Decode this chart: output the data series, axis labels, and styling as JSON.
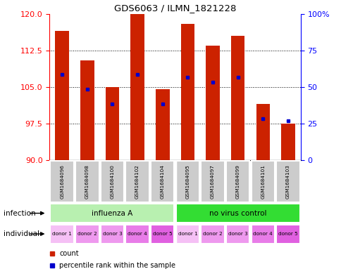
{
  "title": "GDS6063 / ILMN_1821228",
  "samples": [
    "GSM1684096",
    "GSM1684098",
    "GSM1684100",
    "GSM1684102",
    "GSM1684104",
    "GSM1684095",
    "GSM1684097",
    "GSM1684099",
    "GSM1684101",
    "GSM1684103"
  ],
  "count_values": [
    116.5,
    110.5,
    105.0,
    120.0,
    104.5,
    118.0,
    113.5,
    115.5,
    101.5,
    97.5
  ],
  "percentile_values": [
    107.5,
    104.5,
    101.5,
    107.5,
    101.5,
    107.0,
    106.0,
    107.0,
    98.5,
    98.0
  ],
  "ylim_left": [
    90,
    120
  ],
  "ylim_right": [
    0,
    100
  ],
  "yticks_left": [
    90,
    97.5,
    105,
    112.5,
    120
  ],
  "yticks_right": [
    0,
    25,
    50,
    75,
    100
  ],
  "infection_groups": [
    {
      "label": "influenza A",
      "start": 0,
      "end": 5,
      "color": "#b8f0b0"
    },
    {
      "label": "no virus control",
      "start": 5,
      "end": 10,
      "color": "#33dd33"
    }
  ],
  "individual_labels": [
    "donor 1",
    "donor 2",
    "donor 3",
    "donor 4",
    "donor 5",
    "donor 1",
    "donor 2",
    "donor 3",
    "donor 4",
    "donor 5"
  ],
  "individual_colors": [
    "#f0a0f0",
    "#e890e8",
    "#e890e8",
    "#e090e0",
    "#da80da",
    "#f0a0f0",
    "#e890e8",
    "#e890e8",
    "#e090e0",
    "#da80da"
  ],
  "bar_color": "#cc2200",
  "percentile_color": "#0000cc",
  "sample_bg_color": "#cccccc",
  "bar_width": 0.55,
  "base_value": 90,
  "annotation_infection": "infection",
  "annotation_individual": "individual",
  "legend_count": "count",
  "legend_percentile": "percentile rank within the sample"
}
